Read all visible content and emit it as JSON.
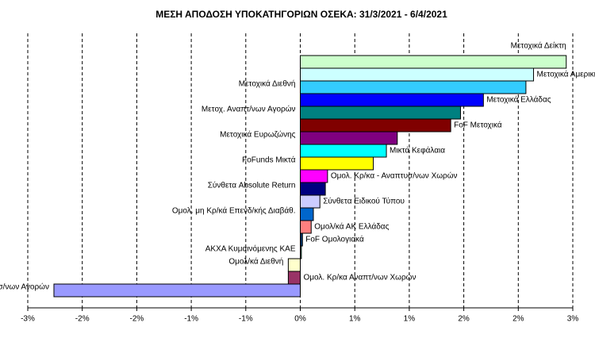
{
  "chart_data": {
    "type": "bar",
    "orientation": "horizontal",
    "title": "ΜΕΣΗ ΑΠΟΔΟΣΗ ΥΠΟΚΑΤΗΓΟΡΙΩΝ  ΟΣΕΚΑ:  31/3/2021  - 6/4/2021",
    "categories": [
      "Μετοχικά Δείκτη",
      "Μετοχικά Αμερικής",
      "Μετοχικά Διεθνή",
      "Μετοχικά Ελλάδας",
      "Μετοχ. Αναπτ/νων Αγορών",
      "FoF Μετοχικά",
      "Μετοχικά Ευρωζώνης",
      "Μικτά Κεφάλαια",
      "FoFunds Μικτά",
      "Ομολ. Κρ/κα - Αναπτυσ/νων Χωρών",
      "Σύνθετα Absolute Return",
      "Σύνθετα Ειδικού Τύπου",
      "Ομολ. μη Κρ/κά Επενδ/κής Διαβάθ.",
      "Ομολ/κά ΑΚ Ελλάδας",
      "FoF Ομολογιακά",
      "ΑΚΧΑ Κυμαινόμενης ΚΑΕ",
      "Ομολ/κά Διεθνή",
      "Ομολ. Κρ/κα Αναπτ/νων Χωρών",
      "Μετοχ. Αναπτυσ/νων Αγορών"
    ],
    "values": [
      2.44,
      2.14,
      2.07,
      1.68,
      1.47,
      1.38,
      0.89,
      0.79,
      0.67,
      0.25,
      0.23,
      0.18,
      0.12,
      0.1,
      0.02,
      0.01,
      -0.11,
      -0.11,
      -2.26
    ],
    "colors": [
      "#ccffcc",
      "#ccffff",
      "#33ccff",
      "#0000ff",
      "#008080",
      "#800000",
      "#800080",
      "#00ffff",
      "#ffff00",
      "#ff00ff",
      "#000080",
      "#ccccff",
      "#0066cc",
      "#ff8080",
      "#003366",
      "#339966",
      "#ffffcc",
      "#993366",
      "#9999ff"
    ],
    "xlim": [
      -2.5,
      2.5
    ],
    "xticks": [
      {
        "value": -2.5,
        "label": "-3%"
      },
      {
        "value": -2.0,
        "label": "-2%"
      },
      {
        "value": -1.5,
        "label": "-2%"
      },
      {
        "value": -1.0,
        "label": "-1%"
      },
      {
        "value": -0.5,
        "label": "-1%"
      },
      {
        "value": 0,
        "label": "0%"
      },
      {
        "value": 0.5,
        "label": "1%"
      },
      {
        "value": 1.0,
        "label": "1%"
      },
      {
        "value": 1.5,
        "label": "2%"
      },
      {
        "value": 2.0,
        "label": "2%"
      },
      {
        "value": 2.5,
        "label": "3%"
      }
    ],
    "grid": true
  }
}
